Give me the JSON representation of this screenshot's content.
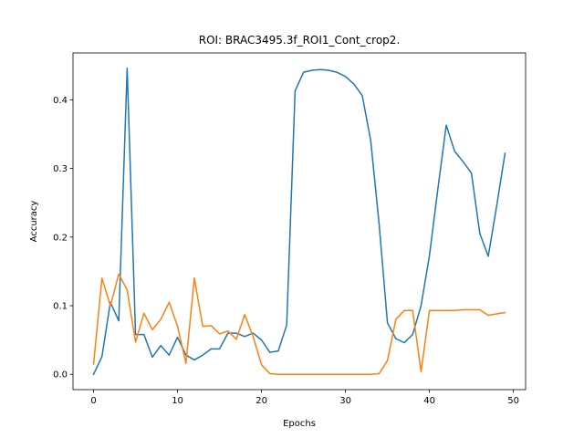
{
  "chart_data": {
    "type": "line",
    "title": "ROI: BRAC3495.3f_ROI1_Cont_crop2.",
    "xlabel": "Epochs",
    "ylabel": "Accuracy",
    "xlim": [
      -2.45,
      51.45
    ],
    "ylim": [
      -0.0223,
      0.4683
    ],
    "xticks": [
      0,
      10,
      20,
      30,
      40,
      50
    ],
    "xtick_labels": [
      "0",
      "10",
      "20",
      "30",
      "40",
      "50"
    ],
    "yticks": [
      0.0,
      0.1,
      0.2,
      0.3,
      0.4
    ],
    "ytick_labels": [
      "0.0",
      "0.1",
      "0.2",
      "0.3",
      "0.4"
    ],
    "grid": false,
    "legend": false,
    "x": [
      0,
      1,
      2,
      3,
      4,
      5,
      6,
      7,
      8,
      9,
      10,
      11,
      12,
      13,
      14,
      15,
      16,
      17,
      18,
      19,
      20,
      21,
      22,
      23,
      24,
      25,
      26,
      27,
      28,
      29,
      30,
      31,
      32,
      33,
      34,
      35,
      36,
      37,
      38,
      39,
      40,
      41,
      42,
      43,
      44,
      45,
      46,
      47,
      48,
      49
    ],
    "series": [
      {
        "color": "#1f77b4",
        "values": [
          0.0,
          0.026,
          0.105,
          0.078,
          0.446,
          0.058,
          0.058,
          0.025,
          0.042,
          0.028,
          0.054,
          0.028,
          0.021,
          0.028,
          0.037,
          0.037,
          0.06,
          0.06,
          0.055,
          0.06,
          0.05,
          0.032,
          0.034,
          0.072,
          0.413,
          0.44,
          0.443,
          0.444,
          0.443,
          0.44,
          0.434,
          0.423,
          0.406,
          0.341,
          0.22,
          0.075,
          0.052,
          0.046,
          0.058,
          0.1,
          0.173,
          0.27,
          0.363,
          0.325,
          0.31,
          0.293,
          0.205,
          0.172,
          0.245,
          0.322
        ]
      },
      {
        "color": "#ff7f0e",
        "values": [
          0.015,
          0.14,
          0.1,
          0.146,
          0.123,
          0.047,
          0.089,
          0.065,
          0.08,
          0.105,
          0.07,
          0.016,
          0.14,
          0.07,
          0.071,
          0.059,
          0.063,
          0.051,
          0.087,
          0.055,
          0.014,
          0.001,
          0.0,
          0.0,
          0.0,
          0.0,
          0.0,
          0.0,
          0.0,
          0.0,
          0.0,
          0.0,
          0.0,
          0.0,
          0.001,
          0.02,
          0.08,
          0.093,
          0.093,
          0.004,
          0.093,
          0.093,
          0.093,
          0.093,
          0.094,
          0.094,
          0.094,
          0.086,
          0.088,
          0.09
        ]
      }
    ]
  }
}
